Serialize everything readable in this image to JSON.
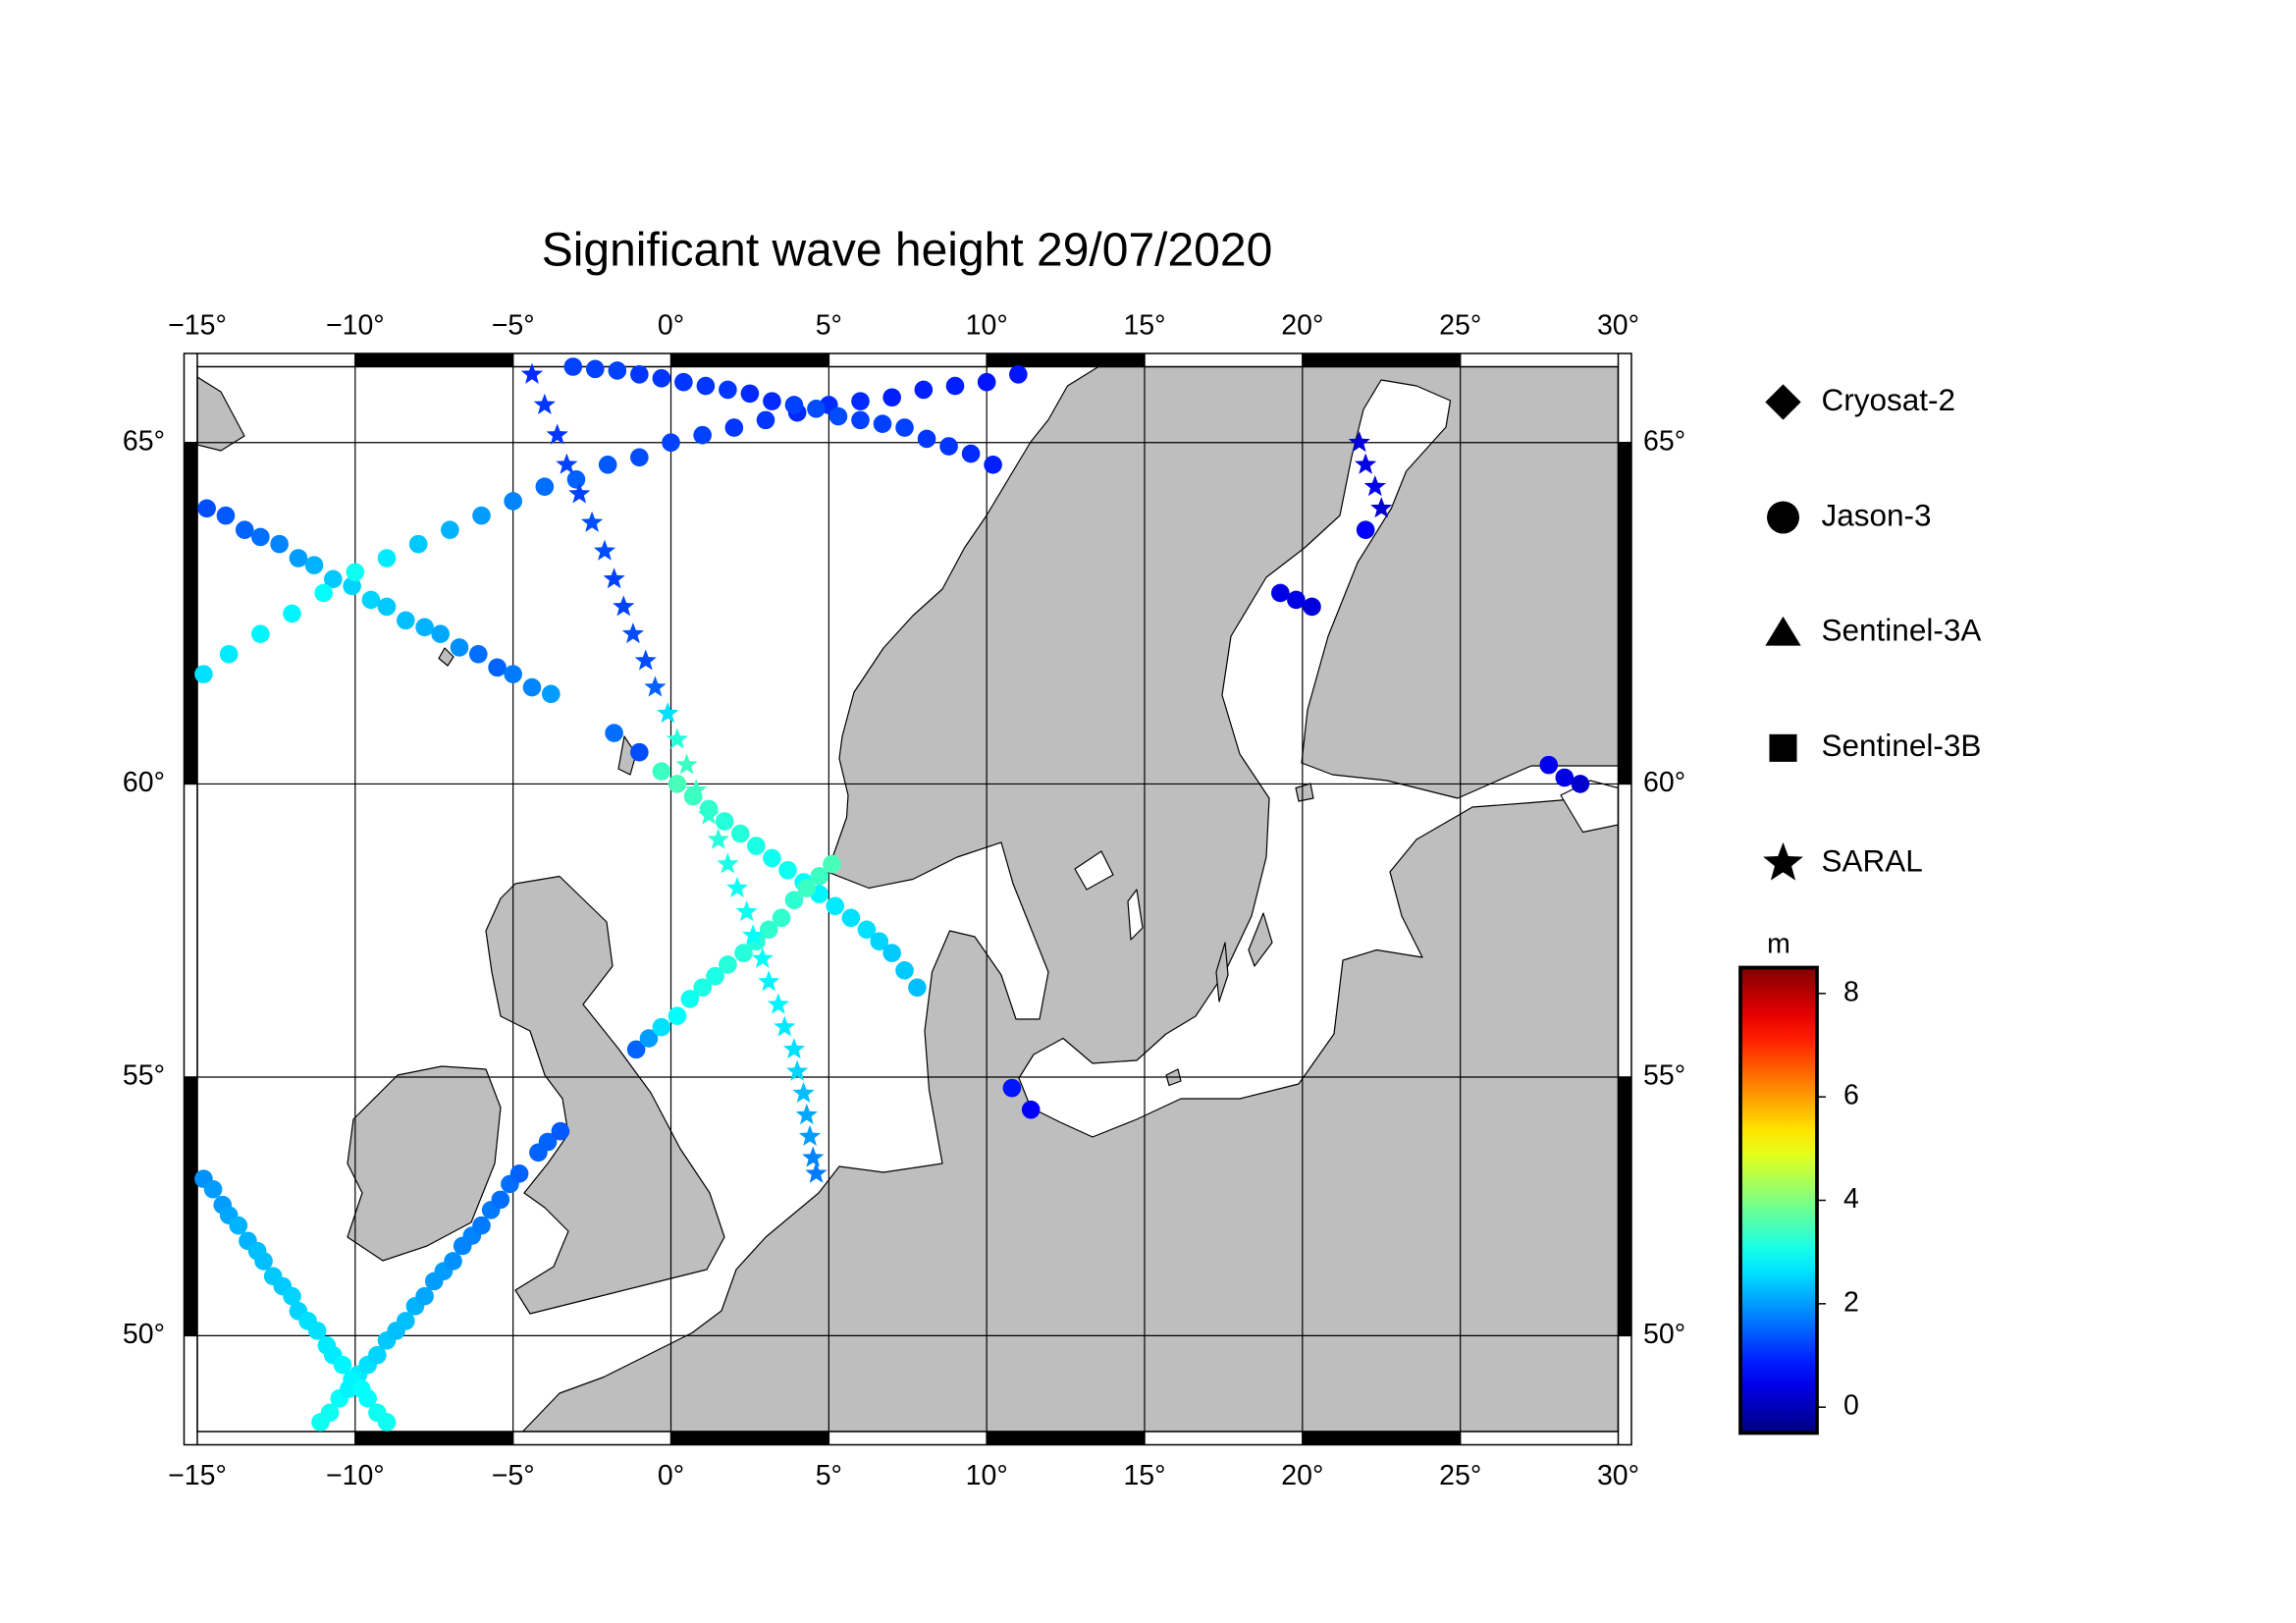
{
  "chart_data": {
    "type": "scatter",
    "title": "Significant wave height 29/07/2020",
    "projection": "mercator",
    "grid": true,
    "xlim": [
      -15,
      30
    ],
    "ylim": [
      48,
      66
    ],
    "xticks": [
      {
        "value": -15,
        "label": "−15°"
      },
      {
        "value": -10,
        "label": "−10°"
      },
      {
        "value": -5,
        "label": "−5°"
      },
      {
        "value": 0,
        "label": "0°"
      },
      {
        "value": 5,
        "label": "5°"
      },
      {
        "value": 10,
        "label": "10°"
      },
      {
        "value": 15,
        "label": "15°"
      },
      {
        "value": 20,
        "label": "20°"
      },
      {
        "value": 25,
        "label": "25°"
      },
      {
        "value": 30,
        "label": "30°"
      }
    ],
    "yticks": [
      {
        "value": 50,
        "label": "50°"
      },
      {
        "value": 55,
        "label": "55°"
      },
      {
        "value": 60,
        "label": "60°"
      },
      {
        "value": 65,
        "label": "65°"
      }
    ],
    "colorbar": {
      "label": "m",
      "colormap": "jet",
      "lim": [
        -0.5,
        8.5
      ],
      "ticks": [
        0,
        2,
        4,
        6,
        8
      ]
    },
    "series": [
      {
        "name": "Cryosat-2",
        "marker": "diamond",
        "x": [],
        "y": [],
        "values": []
      },
      {
        "name": "Jason-3",
        "marker": "circle",
        "x": [
          -14.7,
          -14.1,
          -13.5,
          -13.0,
          -12.4,
          -11.8,
          -11.3,
          -10.7,
          -10.1,
          -9.5,
          -9.0,
          -8.4,
          -7.8,
          -7.3,
          -6.7,
          -6.1,
          -5.5,
          -5.0,
          -4.4,
          -3.8,
          -14.8,
          -14,
          -13,
          -12,
          -11,
          -10,
          -9,
          -8,
          -7,
          -6,
          -5,
          -4,
          -3,
          -2,
          -1,
          0,
          1,
          2,
          3,
          4,
          5,
          6,
          7,
          8,
          9,
          10,
          11,
          -3.1,
          -2.4,
          -1.7,
          -1.0,
          -0.3,
          0.4,
          1.1,
          1.8,
          2.5,
          3.2,
          3.9,
          4.6,
          5.3,
          6.0,
          6.7,
          7.4,
          8.1,
          8.8,
          9.5,
          10.2,
          -1.8,
          -1.0,
          -0.3,
          0.2,
          0.7,
          1.2,
          1.7,
          2.2,
          2.7,
          3.2,
          3.7,
          4.2,
          4.7,
          5.2,
          5.7,
          6.2,
          6.6,
          7.0,
          7.4,
          7.8,
          -1.1,
          -0.7,
          -0.3,
          0.2,
          0.6,
          1.0,
          1.4,
          1.8,
          2.3,
          2.7,
          3.1,
          3.5,
          3.9,
          4.3,
          4.7,
          5.1,
          -4.2,
          -3.9,
          -3.5,
          -11.1,
          -10.8,
          -10.5,
          -10.2,
          -9.9,
          -9.6,
          -9.3,
          -9.0,
          -8.7,
          -8.4,
          -8.1,
          -7.8,
          -7.5,
          -7.2,
          -6.9,
          -6.6,
          -6.3,
          -6.0,
          -5.7,
          -5.4,
          -5.1,
          -4.8,
          -14.8,
          -14.5,
          -14.2,
          -14.0,
          -13.7,
          -13.4,
          -13.1,
          -12.9,
          -12.6,
          -12.3,
          -12.0,
          -11.8,
          -11.5,
          -11.2,
          -10.9,
          -10.7,
          -10.4,
          -10.1,
          -9.8,
          -9.6,
          -9.3,
          -9.0,
          10.8,
          11.4,
          19.3,
          19.8,
          20.3,
          22.0,
          27.8,
          28.3,
          28.8
        ],
        "y": [
          64.1,
          64.0,
          63.8,
          63.7,
          63.6,
          63.4,
          63.3,
          63.1,
          63.0,
          62.8,
          62.7,
          62.5,
          62.4,
          62.3,
          62.1,
          62.0,
          61.8,
          61.7,
          61.5,
          61.4,
          61.7,
          62.0,
          62.3,
          62.6,
          62.9,
          63.2,
          63.4,
          63.6,
          63.8,
          64.0,
          64.2,
          64.4,
          64.5,
          64.7,
          64.8,
          65.0,
          65.1,
          65.2,
          65.3,
          65.4,
          65.5,
          65.55,
          65.6,
          65.7,
          65.75,
          65.8,
          65.9,
          66.0,
          65.97,
          65.95,
          65.9,
          65.85,
          65.8,
          65.75,
          65.7,
          65.65,
          65.55,
          65.5,
          65.45,
          65.35,
          65.3,
          65.25,
          65.2,
          65.05,
          64.95,
          64.85,
          64.7,
          60.8,
          60.5,
          60.2,
          60.0,
          59.8,
          59.6,
          59.4,
          59.2,
          59.0,
          58.8,
          58.6,
          58.4,
          58.2,
          58.0,
          57.8,
          57.6,
          57.4,
          57.2,
          56.9,
          56.6,
          55.5,
          55.7,
          55.9,
          56.1,
          56.4,
          56.6,
          56.8,
          57.0,
          57.2,
          57.4,
          57.6,
          57.8,
          58.1,
          58.3,
          58.5,
          58.7,
          53.6,
          53.8,
          54.0,
          48.2,
          48.4,
          48.7,
          48.9,
          49.2,
          49.4,
          49.6,
          49.9,
          50.1,
          50.3,
          50.6,
          50.8,
          51.1,
          51.3,
          51.5,
          51.8,
          52.0,
          52.2,
          52.5,
          52.7,
          53.0,
          53.2,
          53.1,
          52.9,
          52.6,
          52.4,
          52.2,
          51.9,
          51.7,
          51.5,
          51.2,
          51.0,
          50.8,
          50.5,
          50.3,
          50.1,
          49.8,
          49.6,
          49.4,
          49.1,
          48.9,
          48.7,
          48.4,
          48.2,
          54.8,
          54.4,
          62.9,
          62.8,
          62.7,
          63.8,
          60.3,
          60.1,
          60.0
        ],
        "values": [
          1.3,
          1.4,
          1.5,
          1.6,
          1.8,
          2.0,
          2.2,
          2.4,
          2.5,
          2.5,
          2.4,
          2.3,
          2.2,
          2.1,
          1.9,
          1.6,
          1.5,
          1.7,
          1.8,
          2.0,
          2.6,
          2.7,
          2.8,
          2.8,
          2.9,
          3.0,
          2.7,
          2.4,
          2.2,
          2.0,
          1.8,
          1.6,
          1.5,
          1.4,
          1.3,
          1.2,
          1.2,
          1.1,
          1.1,
          1.0,
          1.0,
          1.0,
          0.9,
          0.9,
          0.9,
          0.8,
          0.8,
          1.2,
          1.2,
          1.2,
          1.1,
          1.1,
          1.1,
          1.1,
          1.1,
          1.0,
          1.0,
          1.2,
          1.3,
          1.3,
          1.2,
          1.2,
          1.2,
          1.1,
          1.1,
          1.0,
          0.9,
          1.6,
          1.3,
          3.4,
          3.5,
          3.4,
          3.3,
          3.2,
          3.2,
          3.1,
          3.0,
          3.0,
          2.9,
          2.8,
          2.7,
          2.6,
          2.6,
          2.5,
          2.4,
          2.4,
          2.3,
          1.5,
          2.0,
          2.6,
          2.9,
          3.0,
          3.1,
          3.1,
          3.2,
          3.2,
          3.2,
          3.3,
          3.3,
          3.3,
          3.4,
          3.4,
          3.5,
          1.5,
          1.5,
          1.4,
          3.0,
          3.0,
          2.9,
          2.8,
          2.7,
          2.6,
          2.5,
          2.4,
          2.3,
          2.3,
          2.2,
          2.1,
          2.0,
          2.0,
          1.9,
          1.8,
          1.8,
          1.7,
          1.7,
          1.6,
          1.6,
          1.5,
          1.9,
          2.0,
          2.0,
          2.1,
          2.2,
          2.2,
          2.3,
          2.3,
          2.4,
          2.4,
          2.5,
          2.5,
          2.6,
          2.6,
          2.7,
          2.7,
          2.8,
          2.8,
          2.9,
          2.9,
          3.0,
          3.0,
          0.8,
          0.6,
          0.4,
          0.4,
          0.3,
          0.6,
          0.5,
          0.4,
          0.2
        ]
      },
      {
        "name": "Sentinel-3A",
        "marker": "triangle",
        "x": [],
        "y": [],
        "values": []
      },
      {
        "name": "Sentinel-3B",
        "marker": "square",
        "x": [],
        "y": [],
        "values": []
      },
      {
        "name": "SARAL",
        "marker": "star",
        "x": [
          -4.4,
          -4.0,
          -3.6,
          -3.3,
          -2.9,
          -2.5,
          -2.1,
          -1.8,
          -1.5,
          -1.2,
          -0.8,
          -0.5,
          -0.1,
          0.2,
          0.5,
          0.8,
          1.2,
          1.5,
          1.8,
          2.1,
          2.4,
          2.6,
          2.9,
          3.1,
          3.4,
          3.6,
          3.9,
          4.0,
          4.2,
          4.3,
          4.4,
          4.5,
          4.6,
          21.8,
          22.0,
          22.3,
          22.5
        ],
        "y": [
          65.9,
          65.5,
          65.1,
          64.7,
          64.3,
          63.9,
          63.5,
          63.1,
          62.7,
          62.3,
          61.9,
          61.5,
          61.1,
          60.7,
          60.3,
          59.9,
          59.5,
          59.1,
          58.7,
          58.3,
          57.9,
          57.5,
          57.1,
          56.7,
          56.3,
          55.9,
          55.5,
          55.1,
          54.7,
          54.3,
          53.9,
          53.5,
          53.2,
          65.0,
          64.7,
          64.4,
          64.1
        ],
        "values": [
          1.0,
          1.1,
          1.1,
          1.2,
          1.2,
          1.3,
          1.3,
          1.2,
          1.2,
          1.3,
          1.3,
          1.5,
          2.6,
          3.2,
          3.4,
          3.4,
          3.3,
          3.2,
          3.1,
          3.0,
          3.0,
          2.9,
          2.9,
          2.8,
          2.8,
          2.7,
          2.6,
          2.5,
          2.3,
          2.1,
          2.0,
          1.8,
          1.7,
          0.3,
          0.4,
          0.5,
          0.2
        ]
      }
    ]
  }
}
